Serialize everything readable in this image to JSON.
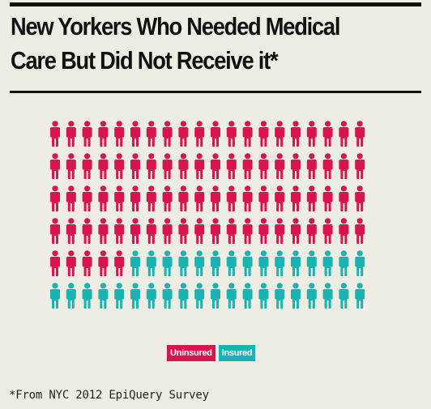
{
  "title": "New Yorkers Who Needed Medical Care But Did Not Receive it*",
  "footnote": "*From NYC 2012 EpiQuery Survey",
  "legend": {
    "uninsured_label": "Uninsured",
    "insured_label": "Insured"
  },
  "colors": {
    "uninsured": "#d8134d",
    "insured": "#19b3b1",
    "background": "#eeede3",
    "text": "#111111"
  },
  "chart_data": {
    "type": "pictogram",
    "title": "New Yorkers Who Needed Medical Care But Did Not Receive it*",
    "total_icons": 120,
    "rows": 6,
    "columns": 20,
    "icon": "person-icon",
    "series": [
      {
        "name": "Uninsured",
        "count": 85,
        "color": "#d8134d"
      },
      {
        "name": "Insured",
        "count": 35,
        "color": "#19b3b1"
      }
    ],
    "legend_position": "bottom-center",
    "footnote": "*From NYC 2012 EpiQuery Survey"
  }
}
